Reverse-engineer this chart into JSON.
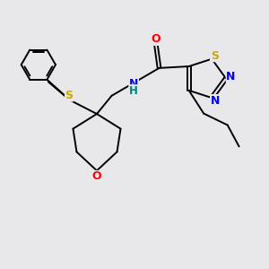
{
  "background_color": "#e8e8eb",
  "bond_color": "#000000",
  "atom_colors": {
    "O": "#ff0000",
    "N": "#0000ff",
    "S": "#ccaa00",
    "H_color": "#008080",
    "amide_O": "#ff0000"
  },
  "font_size": 8.5,
  "figsize": [
    3.0,
    3.0
  ],
  "dpi": 100
}
